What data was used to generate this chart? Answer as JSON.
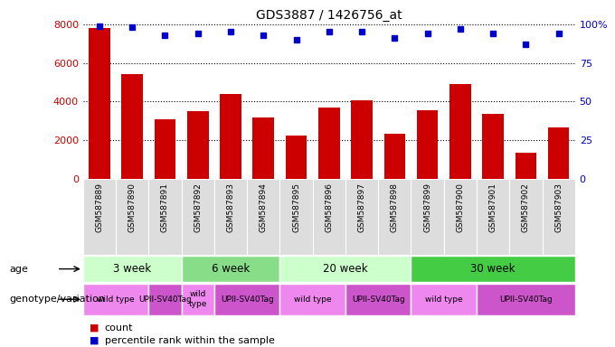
{
  "title": "GDS3887 / 1426756_at",
  "samples": [
    "GSM587889",
    "GSM587890",
    "GSM587891",
    "GSM587892",
    "GSM587893",
    "GSM587894",
    "GSM587895",
    "GSM587896",
    "GSM587897",
    "GSM587898",
    "GSM587899",
    "GSM587900",
    "GSM587901",
    "GSM587902",
    "GSM587903"
  ],
  "counts": [
    7800,
    5400,
    3100,
    3500,
    4400,
    3150,
    2250,
    3700,
    4050,
    2350,
    3550,
    4900,
    3350,
    1350,
    2650
  ],
  "percentiles": [
    99,
    98,
    93,
    94,
    95,
    93,
    90,
    95,
    95,
    91,
    94,
    97,
    94,
    87,
    94
  ],
  "bar_color": "#cc0000",
  "dot_color": "#0000cc",
  "ylim_left": [
    0,
    8000
  ],
  "ylim_right": [
    0,
    100
  ],
  "yticks_left": [
    0,
    2000,
    4000,
    6000,
    8000
  ],
  "yticks_right": [
    0,
    25,
    50,
    75,
    100
  ],
  "age_groups": [
    {
      "label": "3 week",
      "start": 0,
      "end": 3,
      "color": "#ccffcc"
    },
    {
      "label": "6 week",
      "start": 3,
      "end": 6,
      "color": "#88dd88"
    },
    {
      "label": "20 week",
      "start": 6,
      "end": 10,
      "color": "#ccffcc"
    },
    {
      "label": "30 week",
      "start": 10,
      "end": 15,
      "color": "#44cc44"
    }
  ],
  "genotype_groups": [
    {
      "label": "wild type",
      "start": 0,
      "end": 2,
      "color": "#ee88ee"
    },
    {
      "label": "UPII-SV40Tag",
      "start": 2,
      "end": 3,
      "color": "#cc55cc"
    },
    {
      "label": "wild\ntype",
      "start": 3,
      "end": 4,
      "color": "#ee88ee"
    },
    {
      "label": "UPII-SV40Tag",
      "start": 4,
      "end": 6,
      "color": "#cc55cc"
    },
    {
      "label": "wild type",
      "start": 6,
      "end": 8,
      "color": "#ee88ee"
    },
    {
      "label": "UPII-SV40Tag",
      "start": 8,
      "end": 10,
      "color": "#cc55cc"
    },
    {
      "label": "wild type",
      "start": 10,
      "end": 12,
      "color": "#ee88ee"
    },
    {
      "label": "UPII-SV40Tag",
      "start": 12,
      "end": 15,
      "color": "#cc55cc"
    }
  ],
  "age_label": "age",
  "genotype_label": "genotype/variation",
  "legend_count_color": "#cc0000",
  "legend_dot_color": "#0000cc",
  "xtick_bg": "#dddddd"
}
